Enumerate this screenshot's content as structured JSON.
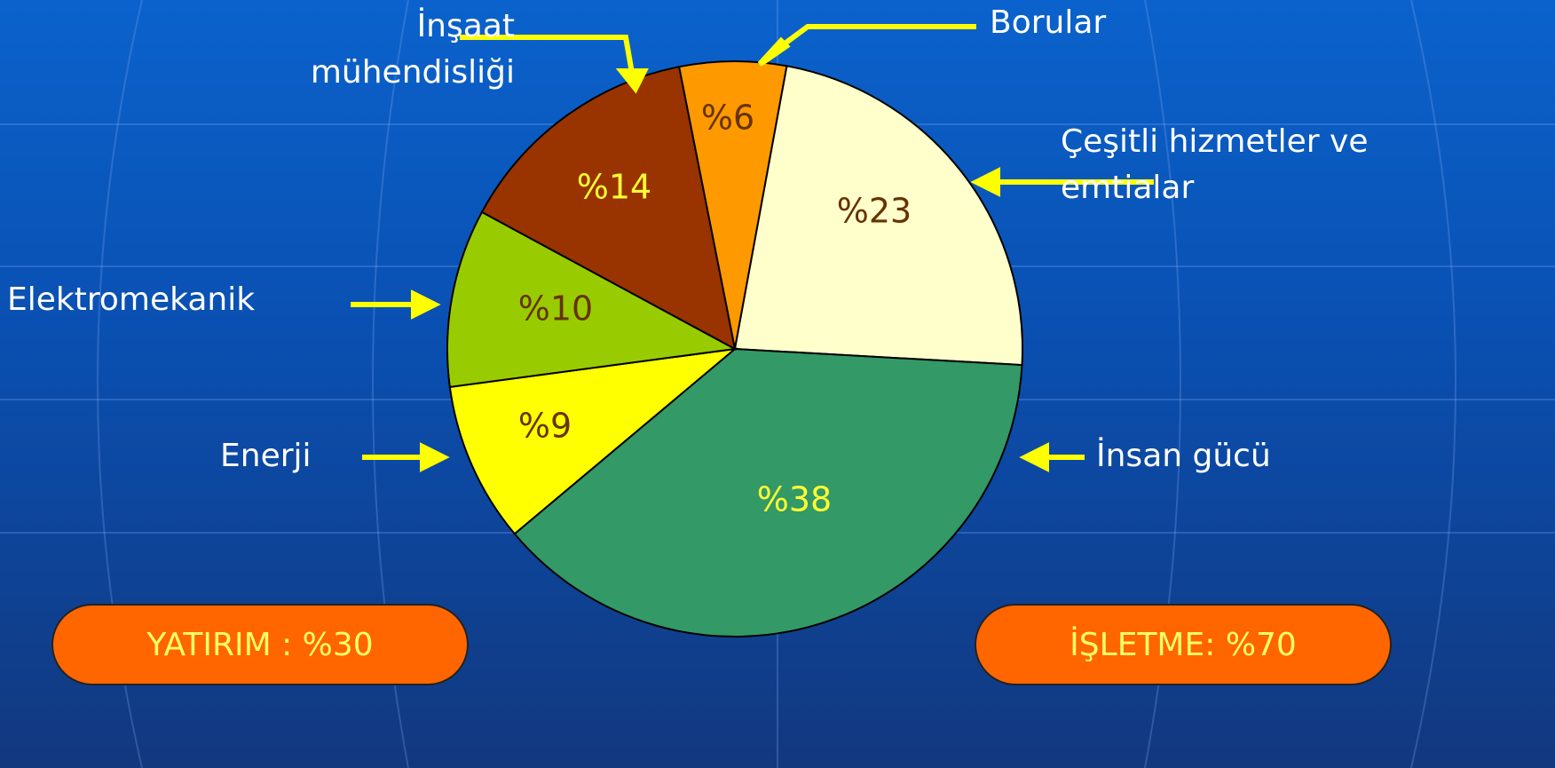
{
  "chart_data": {
    "type": "pie",
    "categories": [
      "Borular",
      "Çeşitli hizmetler ve emtialar",
      "İnsan gücü",
      "Enerji",
      "Elektromekanik",
      "İnşaat mühendisliği"
    ],
    "values": [
      6,
      23,
      38,
      9,
      10,
      14
    ],
    "value_labels": [
      "%6",
      "%23",
      "%38",
      "%9",
      "%10",
      "%14"
    ],
    "colors": [
      "#ff9900",
      "#ffffcc",
      "#339966",
      "#ffff00",
      "#99cc00",
      "#993300"
    ],
    "annotations": [
      "YATIRIM : %30",
      "İŞLETME: %70"
    ]
  }
}
